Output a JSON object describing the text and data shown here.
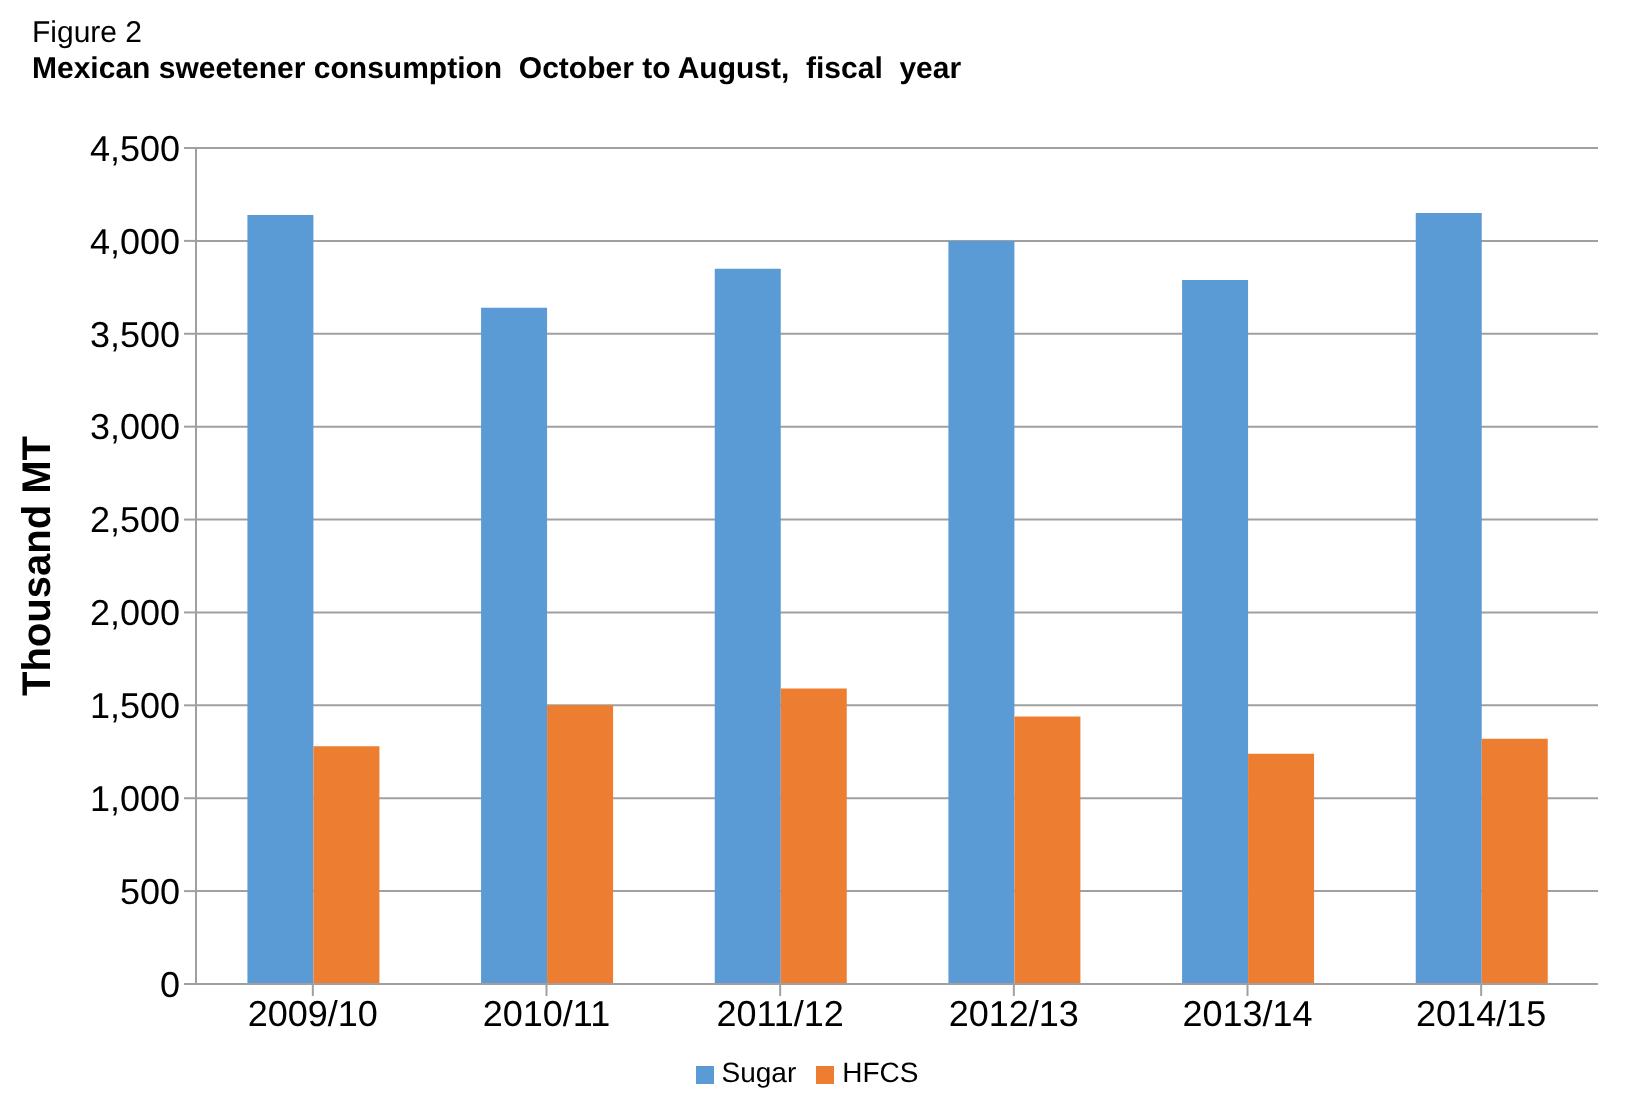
{
  "chart_data": {
    "type": "bar",
    "title": "Figure 2",
    "subtitle": "Mexican sweetener consumption  October to August,  fiscal  year",
    "ylabel": "Thousand MT",
    "categories": [
      "2009/10",
      "2010/11",
      "2011/12",
      "2012/13",
      "2013/14",
      "2014/15"
    ],
    "series": [
      {
        "name": "Sugar",
        "color": "#5b9bd5",
        "values": [
          4140,
          3640,
          3850,
          4000,
          3790,
          4150
        ]
      },
      {
        "name": "HFCS",
        "color": "#ed7d31",
        "values": [
          1280,
          1500,
          1590,
          1440,
          1240,
          1320
        ]
      }
    ],
    "ylim": [
      0,
      4500
    ],
    "yticks": [
      0,
      500,
      {
        "value": 1000,
        "label": "1,000"
      },
      {
        "value": 1500,
        "label": "1,500"
      },
      {
        "value": 2000,
        "label": "2,000"
      },
      {
        "value": 2500,
        "label": "2,500"
      },
      {
        "value": 3000,
        "label": "3,000"
      },
      {
        "value": 3500,
        "label": "3,500"
      },
      {
        "value": 4000,
        "label": "4,000"
      },
      {
        "value": 4500,
        "label": "4,500"
      }
    ],
    "grid": "y",
    "legend": "bottom"
  }
}
